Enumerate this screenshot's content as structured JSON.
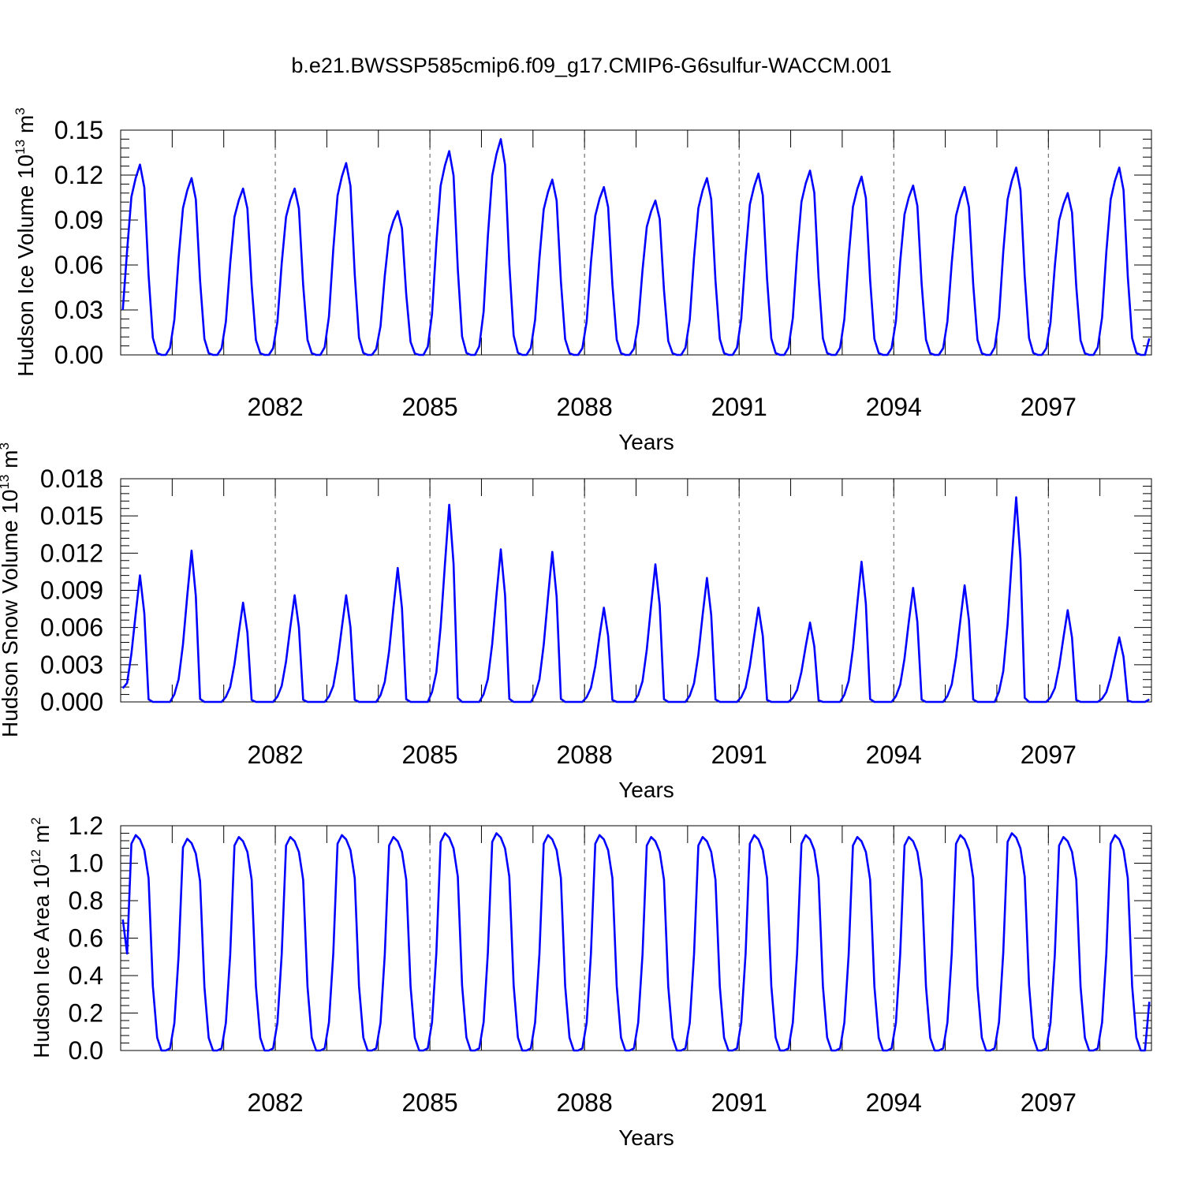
{
  "figure": {
    "title": "b.e21.BWSSP585cmip6.f09_g17.CMIP6-G6sulfur-WACCM.001"
  },
  "chart_data": [
    {
      "type": "line",
      "ylabel_main": "Hudson Ice Volume 10",
      "ylabel_exp": "13",
      "ylabel_unit": "m",
      "ylabel_unit_exp": "3",
      "xlabel": "Years",
      "xlim": [
        2079.0,
        2099.0
      ],
      "ylim": [
        0,
        0.15
      ],
      "xticks": [
        "2082",
        "2085",
        "2088",
        "2091",
        "2094",
        "2097"
      ],
      "yticks": [
        "0.00",
        "0.03",
        "0.06",
        "0.09",
        "0.12",
        "0.15"
      ],
      "grid": "vertical dashed at labeled years",
      "color": "#0000ff",
      "peaks": [
        0.127,
        0.118,
        0.111,
        0.111,
        0.128,
        0.096,
        0.136,
        0.144,
        0.117,
        0.112,
        0.103,
        0.118,
        0.121,
        0.123,
        0.119,
        0.113,
        0.112,
        0.125,
        0.108,
        0.125
      ],
      "start_value": 0.03,
      "end_value": 0.011
    },
    {
      "type": "line",
      "ylabel_main": "Hudson Snow Volume 10",
      "ylabel_exp": "13",
      "ylabel_unit": "m",
      "ylabel_unit_exp": "3",
      "xlabel": "Years",
      "xlim": [
        2079.0,
        2099.0
      ],
      "ylim": [
        0,
        0.018
      ],
      "xticks": [
        "2082",
        "2085",
        "2088",
        "2091",
        "2094",
        "2097"
      ],
      "yticks": [
        "0.000",
        "0.003",
        "0.006",
        "0.009",
        "0.012",
        "0.015",
        "0.018"
      ],
      "grid": "vertical dashed at labeled years",
      "color": "#0000ff",
      "peaks": [
        0.0102,
        0.0122,
        0.008,
        0.0086,
        0.0086,
        0.0108,
        0.0159,
        0.0123,
        0.0121,
        0.0076,
        0.0111,
        0.01,
        0.0076,
        0.0064,
        0.0113,
        0.0092,
        0.0094,
        0.0165,
        0.0074,
        0.0052
      ],
      "start_value": 0.0011,
      "end_value": 0.0002
    },
    {
      "type": "line",
      "ylabel_main": "Hudson Ice Area 10",
      "ylabel_exp": "12",
      "ylabel_unit": "m",
      "ylabel_unit_exp": "2",
      "xlabel": "Years",
      "xlim": [
        2079.0,
        2099.0
      ],
      "ylim": [
        0,
        1.2
      ],
      "xticks": [
        "2082",
        "2085",
        "2088",
        "2091",
        "2094",
        "2097"
      ],
      "yticks": [
        "0.0",
        "0.2",
        "0.4",
        "0.6",
        "0.8",
        "1.0",
        "1.2"
      ],
      "grid": "vertical dashed at labeled years",
      "color": "#0000ff",
      "peaks": [
        1.15,
        1.13,
        1.14,
        1.14,
        1.15,
        1.14,
        1.16,
        1.16,
        1.15,
        1.15,
        1.14,
        1.14,
        1.15,
        1.15,
        1.14,
        1.14,
        1.15,
        1.16,
        1.14,
        1.15
      ],
      "start_value": 0.7,
      "end_value": 0.26
    }
  ]
}
